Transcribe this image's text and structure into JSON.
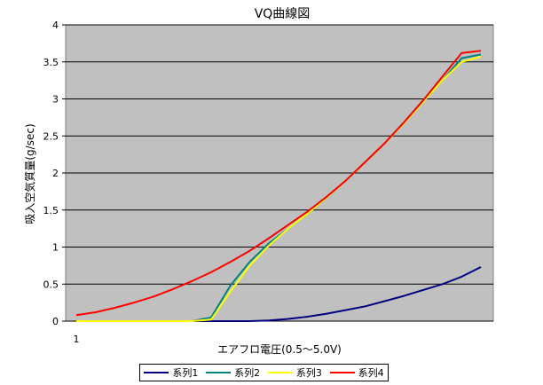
{
  "chart_data": {
    "type": "line",
    "title": "VQ曲線図",
    "xlabel": "エアフロ電圧(0.5〜5.0V)",
    "ylabel": "吸入空気質量(g/sec)",
    "ylim": [
      0,
      4
    ],
    "y_ticks": [
      "0",
      "0.5",
      "1",
      "1.5",
      "2",
      "2.5",
      "3",
      "3.5",
      "4"
    ],
    "x_tick_label": "1",
    "grid": true,
    "legend": "bottom",
    "x": [
      1,
      2,
      3,
      4,
      5,
      6,
      7,
      8,
      9,
      10,
      11,
      12,
      13,
      14,
      15,
      16,
      17,
      18,
      19,
      20,
      21,
      22
    ],
    "series": [
      {
        "name": "系列1",
        "color": "#000080",
        "values": [
          0,
          0,
          0,
          0,
          0,
          0,
          0,
          0,
          0,
          0,
          0.01,
          0.03,
          0.06,
          0.1,
          0.15,
          0.2,
          0.27,
          0.34,
          0.42,
          0.5,
          0.6,
          0.73
        ]
      },
      {
        "name": "系列2",
        "color": "#008080",
        "values": [
          0,
          0,
          0,
          0,
          0,
          0,
          0,
          0.05,
          0.48,
          0.8,
          1.05,
          1.25,
          1.45,
          1.67,
          1.9,
          2.15,
          2.4,
          2.68,
          2.98,
          3.25,
          3.55,
          3.6
        ]
      },
      {
        "name": "系列3",
        "color": "#ffff00",
        "values": [
          0,
          0,
          0,
          0,
          0,
          0,
          0,
          0.02,
          0.4,
          0.75,
          1.02,
          1.25,
          1.45,
          1.67,
          1.9,
          2.15,
          2.4,
          2.67,
          2.96,
          3.25,
          3.5,
          3.57
        ]
      },
      {
        "name": "系列4",
        "color": "#ff0000",
        "values": [
          0.08,
          0.12,
          0.18,
          0.25,
          0.33,
          0.43,
          0.54,
          0.66,
          0.8,
          0.95,
          1.12,
          1.3,
          1.48,
          1.68,
          1.9,
          2.15,
          2.4,
          2.68,
          2.98,
          3.3,
          3.62,
          3.65
        ]
      }
    ]
  }
}
